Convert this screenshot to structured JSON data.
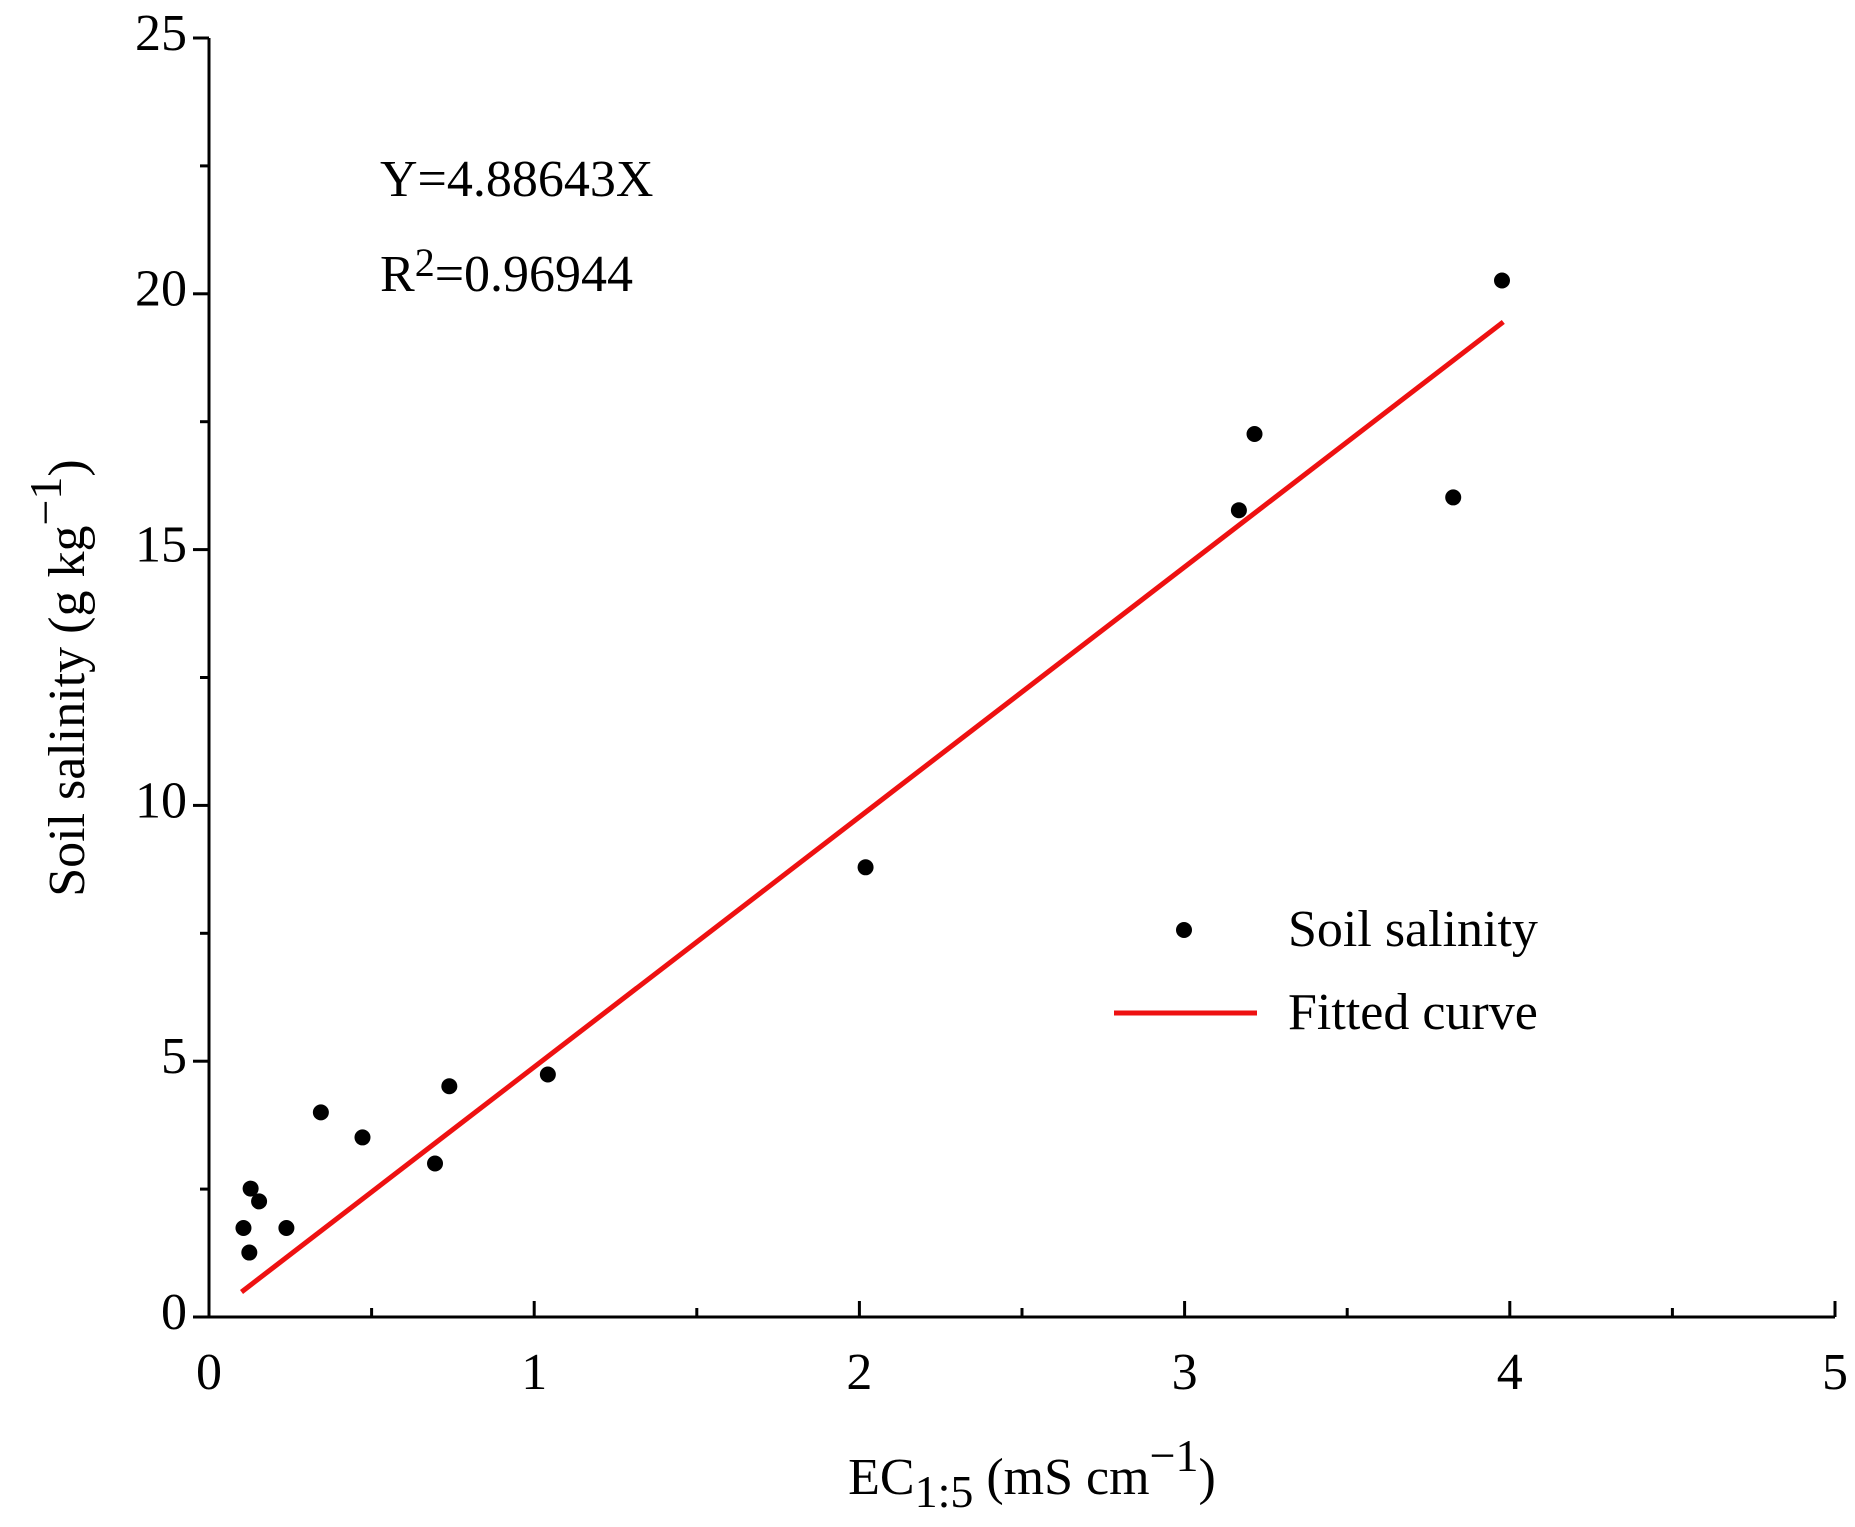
{
  "chart_data": {
    "type": "scatter",
    "x_label": {
      "main": "EC",
      "sub": "1:5",
      "unit": " (mS cm",
      "sup": "−1",
      "close": ")"
    },
    "y_label": {
      "main": "Soil salinity (g kg",
      "sup": "−1",
      "close": ")"
    },
    "annotations": [
      "Y=4.88643X",
      {
        "main": "R",
        "sup": "2",
        "rest": "=0.96944"
      }
    ],
    "series": [
      {
        "name": "Soil salinity",
        "color": "#000000",
        "style": "marker",
        "x": [
          0.106,
          0.124,
          0.128,
          0.154,
          0.238,
          0.344,
          0.472,
          0.695,
          0.739,
          1.042,
          2.019,
          3.167,
          3.215,
          3.826,
          3.976
        ],
        "values": [
          1.74,
          1.26,
          2.51,
          2.26,
          1.74,
          4.0,
          3.51,
          3.0,
          4.51,
          4.74,
          8.79,
          15.77,
          17.26,
          16.02,
          20.26
        ]
      },
      {
        "name": "Fitted curve",
        "color": "#ee1111",
        "style": "line",
        "x": [
          0.1,
          3.98
        ],
        "values": [
          0.489,
          19.45
        ]
      }
    ],
    "xlim": [
      0,
      5
    ],
    "xticks": [
      0,
      1,
      2,
      3,
      4,
      5
    ],
    "ylim": [
      0,
      25
    ],
    "yticks": [
      0,
      5,
      10,
      15,
      20,
      25
    ],
    "grid": false,
    "legend": "right"
  }
}
